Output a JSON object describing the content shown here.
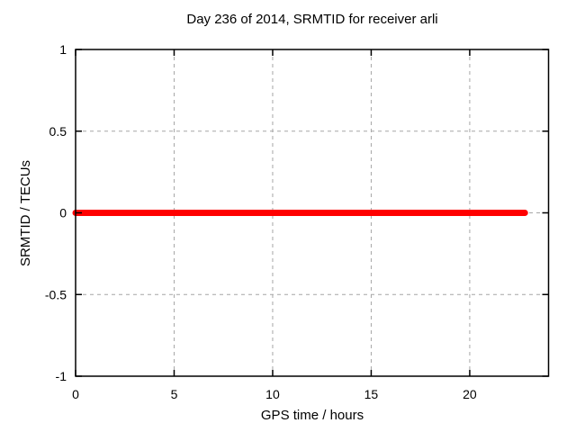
{
  "window": {
    "background": "#ffffff"
  },
  "chart_data": {
    "type": "line",
    "title": "Day 236 of 2014, SRMTID for receiver arli",
    "xlabel": "GPS time / hours",
    "ylabel": "SRMTID / TECUs",
    "xlim": [
      0,
      24
    ],
    "ylim": [
      -1,
      1
    ],
    "xticks": [
      0,
      5,
      10,
      15,
      20
    ],
    "yticks": [
      1,
      0.5,
      0,
      -0.5,
      -1
    ],
    "ytick_labels": [
      "1",
      "0.5",
      "0",
      "-0.5",
      "-1"
    ],
    "xtick_labels": [
      "0",
      "5",
      "10",
      "15",
      "20"
    ],
    "grid": true,
    "legend": "none",
    "colors": {
      "series": "#ff0000",
      "grid": "#a6a6a6",
      "axis": "#000000",
      "text": "#000000",
      "background": "#ffffff"
    },
    "series": [
      {
        "name": "SRMTID",
        "color": "#ff0000",
        "linewidth": 7,
        "x": [
          0,
          22.8
        ],
        "y": [
          0,
          0
        ]
      }
    ]
  }
}
